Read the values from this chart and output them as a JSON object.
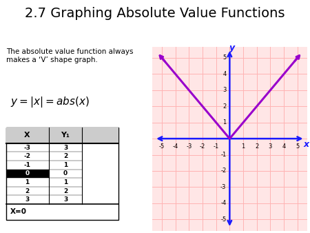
{
  "title": "2.7 Graphing Absolute Value Functions",
  "subtitle": "The absolute value function always\nmakes a ‘V’ shape graph.",
  "formula": "$y = |x| = abs(x)$",
  "table_x": [
    "-3",
    "-2",
    "-1",
    "0",
    "1",
    "2",
    "3"
  ],
  "table_y": [
    "3",
    "2",
    "1",
    "0",
    "1",
    "2",
    "3"
  ],
  "table_highlight_row": 3,
  "table_footer": "X=0",
  "graph_xlim": [
    -5.7,
    5.7
  ],
  "graph_ylim": [
    -5.7,
    5.7
  ],
  "graph_xticks": [
    -5,
    -4,
    -3,
    -2,
    -1,
    1,
    2,
    3,
    4,
    5
  ],
  "graph_yticks": [
    -5,
    -4,
    -3,
    -2,
    -1,
    1,
    2,
    3,
    4,
    5
  ],
  "grid_color": "#ffb3b3",
  "axis_color": "#1a1aff",
  "function_color": "#9900cc",
  "background_color": "#ffffff",
  "graph_bg_color": "#ffe6e6",
  "title_fontsize": 14,
  "subtitle_fontsize": 7.5,
  "formula_fontsize": 11
}
